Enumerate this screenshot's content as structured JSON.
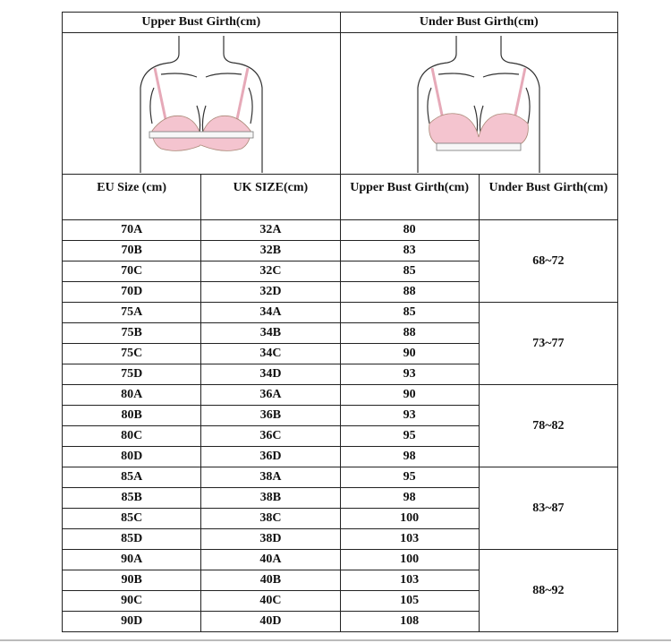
{
  "header": {
    "upper": "Upper Bust Girth(cm)",
    "under": "Under Bust Girth(cm)"
  },
  "columns": [
    "EU Size (cm)",
    "UK SIZE(cm)",
    "Upper Bust Girth(cm)",
    "Under Bust Girth(cm)"
  ],
  "groups": [
    {
      "under": "68~72",
      "rows": [
        [
          "70A",
          "32A",
          "80"
        ],
        [
          "70B",
          "32B",
          "83"
        ],
        [
          "70C",
          "32C",
          "85"
        ],
        [
          "70D",
          "32D",
          "88"
        ]
      ]
    },
    {
      "under": "73~77",
      "rows": [
        [
          "75A",
          "34A",
          "85"
        ],
        [
          "75B",
          "34B",
          "88"
        ],
        [
          "75C",
          "34C",
          "90"
        ],
        [
          "75D",
          "34D",
          "93"
        ]
      ]
    },
    {
      "under": "78~82",
      "rows": [
        [
          "80A",
          "36A",
          "90"
        ],
        [
          "80B",
          "36B",
          "93"
        ],
        [
          "80C",
          "36C",
          "95"
        ],
        [
          "80D",
          "36D",
          "98"
        ]
      ]
    },
    {
      "under": "83~87",
      "rows": [
        [
          "85A",
          "38A",
          "95"
        ],
        [
          "85B",
          "38B",
          "98"
        ],
        [
          "85C",
          "38C",
          "100"
        ],
        [
          "85D",
          "38D",
          "103"
        ]
      ]
    },
    {
      "under": "88~92",
      "rows": [
        [
          "90A",
          "40A",
          "100"
        ],
        [
          "90B",
          "40B",
          "103"
        ],
        [
          "90C",
          "40C",
          "105"
        ],
        [
          "90D",
          "40D",
          "108"
        ]
      ]
    }
  ],
  "colors": {
    "bra": "#f4c4cf",
    "line": "#333333"
  }
}
